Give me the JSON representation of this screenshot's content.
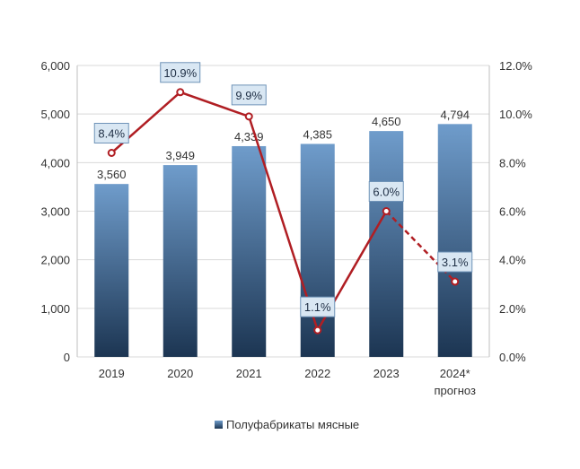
{
  "chart_data": {
    "type": "bar",
    "categories": [
      "2019",
      "2020",
      "2021",
      "2022",
      "2023",
      "2024*"
    ],
    "category_notes": [
      "",
      "",
      "",
      "",
      "",
      "прогноз"
    ],
    "series": [
      {
        "name": "Полуфабрикаты мясные",
        "type": "bar",
        "axis": "left",
        "values": [
          3560,
          3949,
          4339,
          4385,
          4650,
          4794
        ],
        "value_labels": [
          "3,560",
          "3,949",
          "4,339",
          "4,385",
          "4,650",
          "4,794"
        ]
      },
      {
        "type": "line",
        "axis": "right",
        "values": [
          8.4,
          10.9,
          9.9,
          1.1,
          6.0,
          3.1
        ],
        "value_labels": [
          "8.4%",
          "10.9%",
          "9.9%",
          "1.1%",
          "6.0%",
          "3.1%"
        ],
        "forecast_from_index": 4
      }
    ],
    "y_left": {
      "ylim": [
        0,
        6000
      ],
      "ticks": [
        0,
        1000,
        2000,
        3000,
        4000,
        5000,
        6000
      ],
      "tick_labels": [
        "0",
        "1,000",
        "2,000",
        "3,000",
        "4,000",
        "5,000",
        "6,000"
      ]
    },
    "y_right": {
      "ylim": [
        0,
        12
      ],
      "ticks": [
        0,
        2,
        4,
        6,
        8,
        10,
        12
      ],
      "tick_labels": [
        "0.0%",
        "2.0%",
        "4.0%",
        "6.0%",
        "8.0%",
        "10.0%",
        "12.0%"
      ]
    },
    "grid": true,
    "legend": "bottom-center",
    "colors": {
      "bar_top": "#6f9ccb",
      "bar_bottom": "#1c3552",
      "line": "#b01e23",
      "marker_fill": "#ffffff",
      "label_box_fill": "#d9e7f3",
      "label_box_stroke": "#6f93b8",
      "grid": "#d9d9d9"
    }
  }
}
